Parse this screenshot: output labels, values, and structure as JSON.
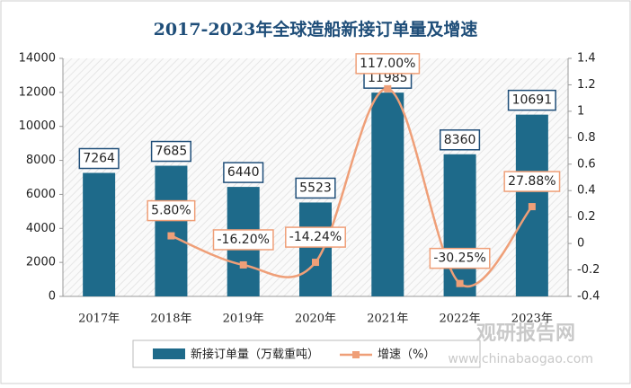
{
  "chart_data": {
    "type": "bar_line",
    "title": "2017-2023年全球造船新接订单量及增速",
    "categories": [
      "2017年",
      "2018年",
      "2019年",
      "2020年",
      "2021年",
      "2022年",
      "2023年"
    ],
    "series": [
      {
        "name": "新接订单量（万载重吨）",
        "type": "bar",
        "color": "#1e6a8a",
        "values": [
          7264,
          7685,
          6440,
          5523,
          11985,
          8360,
          10691
        ]
      },
      {
        "name": "增速（%）",
        "type": "line",
        "axis": "y2",
        "color": "#ef9f78",
        "values": [
          null,
          0.058,
          -0.162,
          -0.1424,
          1.17,
          -0.3025,
          0.2788
        ],
        "value_labels": [
          null,
          "5.80%",
          "-16.20%",
          "-14.24%",
          "117.00%",
          "-30.25%",
          "27.88%"
        ]
      }
    ],
    "ylim": [
      0,
      14000
    ],
    "yticks": [
      0,
      2000,
      4000,
      6000,
      8000,
      10000,
      12000,
      14000
    ],
    "y2lim": [
      -0.4,
      1.4
    ],
    "y2ticks": [
      -0.4,
      -0.2,
      0,
      0.2,
      0.4,
      0.6,
      0.8,
      1,
      1.2,
      1.4
    ],
    "watermark": "观研报告网",
    "watermark_url": "www.chinabaogao.com"
  }
}
